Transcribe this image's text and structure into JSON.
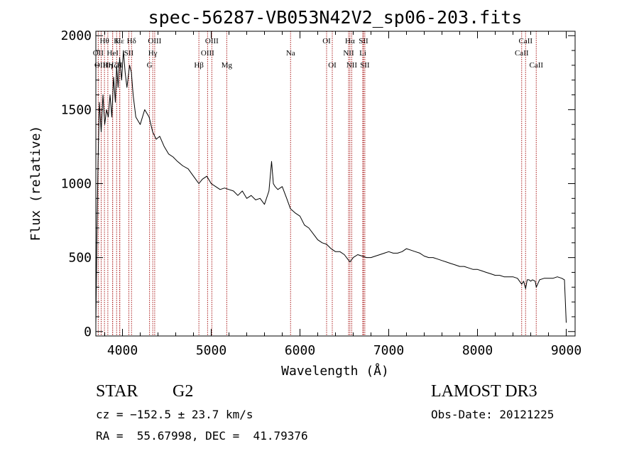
{
  "chart_data": {
    "type": "line",
    "title": "spec-56287-VB053N42V2_sp06-203.fits",
    "xlabel": "Wavelength (Å)",
    "ylabel": "Flux (relative)",
    "xlim": [
      3700,
      9100
    ],
    "ylim": [
      -30,
      2030
    ],
    "x_ticks": [
      "4000",
      "5000",
      "6000",
      "7000",
      "8000",
      "9000"
    ],
    "y_ticks": [
      "0",
      "500",
      "1000",
      "1500",
      "2000"
    ],
    "x_tick_values": [
      4000,
      5000,
      6000,
      7000,
      8000,
      9000
    ],
    "y_tick_values": [
      0,
      500,
      1000,
      1500,
      2000
    ],
    "grid": false,
    "line_color": "#000000",
    "marker_color": "#aa1a1a",
    "series": [
      {
        "x": [
          3700,
          3712,
          3725,
          3740,
          3760,
          3780,
          3800,
          3820,
          3840,
          3860,
          3880,
          3900,
          3920,
          3934,
          3950,
          3968,
          3990,
          4010,
          4030,
          4050,
          4080,
          4101,
          4120,
          4150,
          4200,
          4250,
          4300,
          4340,
          4380,
          4420,
          4470,
          4520,
          4570,
          4620,
          4680,
          4740,
          4800,
          4861,
          4900,
          4950,
          5000,
          5050,
          5100,
          5150,
          5200,
          5250,
          5300,
          5350,
          5400,
          5450,
          5500,
          5550,
          5600,
          5650,
          5680,
          5700,
          5720,
          5750,
          5800,
          5850,
          5893,
          5950,
          6000,
          6050,
          6100,
          6150,
          6200,
          6250,
          6300,
          6350,
          6400,
          6450,
          6500,
          6563,
          6600,
          6650,
          6700,
          6750,
          6800,
          6850,
          6900,
          6950,
          7000,
          7050,
          7100,
          7150,
          7200,
          7250,
          7300,
          7350,
          7400,
          7450,
          7500,
          7550,
          7600,
          7650,
          7700,
          7750,
          7800,
          7850,
          7900,
          7950,
          8000,
          8050,
          8100,
          8150,
          8200,
          8250,
          8300,
          8350,
          8400,
          8450,
          8498,
          8520,
          8542,
          8560,
          8580,
          8600,
          8620,
          8650,
          8662,
          8700,
          8750,
          8800,
          8850,
          8900,
          8950,
          8980,
          8990,
          9000
        ],
        "y": [
          50,
          650,
          1150,
          1550,
          1350,
          1600,
          1400,
          1500,
          1450,
          1600,
          1450,
          1720,
          1550,
          1800,
          1650,
          1850,
          1700,
          1900,
          1750,
          1650,
          1800,
          1750,
          1600,
          1450,
          1400,
          1500,
          1450,
          1350,
          1300,
          1320,
          1250,
          1200,
          1180,
          1150,
          1120,
          1100,
          1050,
          1000,
          1030,
          1050,
          1000,
          980,
          960,
          970,
          960,
          950,
          920,
          950,
          900,
          920,
          890,
          900,
          860,
          950,
          1150,
          1000,
          980,
          960,
          980,
          900,
          830,
          800,
          780,
          720,
          700,
          660,
          620,
          600,
          590,
          560,
          540,
          540,
          520,
          470,
          500,
          520,
          510,
          500,
          500,
          510,
          520,
          530,
          540,
          530,
          530,
          540,
          560,
          550,
          540,
          530,
          510,
          500,
          500,
          490,
          480,
          470,
          460,
          450,
          440,
          440,
          430,
          420,
          420,
          410,
          400,
          390,
          380,
          380,
          370,
          370,
          370,
          360,
          320,
          340,
          290,
          350,
          350,
          340,
          350,
          340,
          300,
          350,
          360,
          360,
          360,
          370,
          360,
          350,
          200,
          60
        ]
      }
    ],
    "lines": [
      {
        "label": "Hθ",
        "x": 3797,
        "row": 1
      },
      {
        "label": "OII",
        "x": 3727,
        "row": 2
      },
      {
        "label": "OIII",
        "x": 3760,
        "row": 3
      },
      {
        "label": "Hη",
        "x": 3835,
        "row": 3
      },
      {
        "label": "HeI",
        "x": 3889,
        "row": 2
      },
      {
        "label": "Hζ",
        "x": 3889,
        "row": 3
      },
      {
        "label": "K",
        "x": 3934,
        "row": 1
      },
      {
        "label": "H",
        "x": 3968,
        "row": 3
      },
      {
        "label": "Hε",
        "x": 3970,
        "row": 1
      },
      {
        "label": "SII",
        "x": 4072,
        "row": 2
      },
      {
        "label": "Hδ",
        "x": 4102,
        "row": 1
      },
      {
        "label": "G",
        "x": 4305,
        "row": 3
      },
      {
        "label": "Hγ",
        "x": 4341,
        "row": 2
      },
      {
        "label": "OIII",
        "x": 4363,
        "row": 1
      },
      {
        "label": "Hβ",
        "x": 4861,
        "row": 3
      },
      {
        "label": "OIII",
        "x": 4959,
        "row": 2
      },
      {
        "label": "OIII",
        "x": 5007,
        "row": 1
      },
      {
        "label": "Mg",
        "x": 5175,
        "row": 3
      },
      {
        "label": "Na",
        "x": 5894,
        "row": 2
      },
      {
        "label": "OI",
        "x": 6300,
        "row": 1
      },
      {
        "label": "OI",
        "x": 6364,
        "row": 3
      },
      {
        "label": "NII",
        "x": 6548,
        "row": 2
      },
      {
        "label": "Hα",
        "x": 6563,
        "row": 1
      },
      {
        "label": "NII",
        "x": 6583,
        "row": 3
      },
      {
        "label": "Li",
        "x": 6708,
        "row": 2
      },
      {
        "label": "SII",
        "x": 6716,
        "row": 1
      },
      {
        "label": "SII",
        "x": 6731,
        "row": 3
      },
      {
        "label": "CaII",
        "x": 8498,
        "row": 2
      },
      {
        "label": "CaII",
        "x": 8542,
        "row": 1
      },
      {
        "label": "CaII",
        "x": 8662,
        "row": 3
      }
    ]
  },
  "info": {
    "class": "STAR",
    "subclass": "G2",
    "survey": "LAMOST DR3",
    "cz": "cz = −152.5 ± 23.7 km/s",
    "obs_date": "Obs-Date: 20121225",
    "coords": "RA =  55.67998, DEC =  41.79376"
  }
}
